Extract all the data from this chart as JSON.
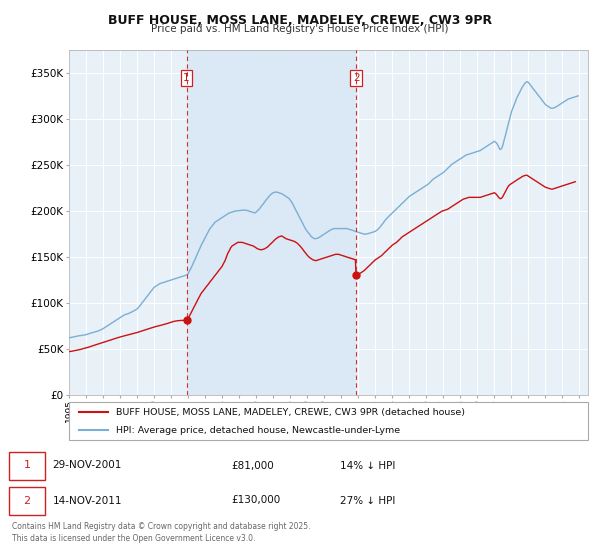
{
  "title": "BUFF HOUSE, MOSS LANE, MADELEY, CREWE, CW3 9PR",
  "subtitle": "Price paid vs. HM Land Registry's House Price Index (HPI)",
  "ytick_values": [
    0,
    50000,
    100000,
    150000,
    200000,
    250000,
    300000,
    350000
  ],
  "ylim": [
    0,
    375000
  ],
  "xlim_start": 1995.0,
  "xlim_end": 2025.5,
  "sale1_date": 2001.91,
  "sale1_label": "1",
  "sale1_price": 81000,
  "sale2_date": 2011.87,
  "sale2_label": "2",
  "sale2_price": 130000,
  "vline_color": "#cc3333",
  "hpi_color": "#7aafd4",
  "price_color": "#cc1111",
  "shade_color": "#dae8f5",
  "background_color": "#e8f0f8",
  "legend_entry1": "BUFF HOUSE, MOSS LANE, MADELEY, CREWE, CW3 9PR (detached house)",
  "legend_entry2": "HPI: Average price, detached house, Newcastle-under-Lyme",
  "table_row1": [
    "1",
    "29-NOV-2001",
    "£81,000",
    "14% ↓ HPI"
  ],
  "table_row2": [
    "2",
    "14-NOV-2011",
    "£130,000",
    "27% ↓ HPI"
  ],
  "footnote": "Contains HM Land Registry data © Crown copyright and database right 2025.\nThis data is licensed under the Open Government Licence v3.0.",
  "hpi_data_x": [
    1995.0,
    1995.08,
    1995.17,
    1995.25,
    1995.33,
    1995.42,
    1995.5,
    1995.58,
    1995.67,
    1995.75,
    1995.83,
    1995.92,
    1996.0,
    1996.08,
    1996.17,
    1996.25,
    1996.33,
    1996.42,
    1996.5,
    1996.58,
    1996.67,
    1996.75,
    1996.83,
    1996.92,
    1997.0,
    1997.08,
    1997.17,
    1997.25,
    1997.33,
    1997.42,
    1997.5,
    1997.58,
    1997.67,
    1997.75,
    1997.83,
    1997.92,
    1998.0,
    1998.08,
    1998.17,
    1998.25,
    1998.33,
    1998.42,
    1998.5,
    1998.58,
    1998.67,
    1998.75,
    1998.83,
    1998.92,
    1999.0,
    1999.08,
    1999.17,
    1999.25,
    1999.33,
    1999.42,
    1999.5,
    1999.58,
    1999.67,
    1999.75,
    1999.83,
    1999.92,
    2000.0,
    2000.08,
    2000.17,
    2000.25,
    2000.33,
    2000.42,
    2000.5,
    2000.58,
    2000.67,
    2000.75,
    2000.83,
    2000.92,
    2001.0,
    2001.08,
    2001.17,
    2001.25,
    2001.33,
    2001.42,
    2001.5,
    2001.58,
    2001.67,
    2001.75,
    2001.83,
    2001.92,
    2002.0,
    2002.08,
    2002.17,
    2002.25,
    2002.33,
    2002.42,
    2002.5,
    2002.58,
    2002.67,
    2002.75,
    2002.83,
    2002.92,
    2003.0,
    2003.08,
    2003.17,
    2003.25,
    2003.33,
    2003.42,
    2003.5,
    2003.58,
    2003.67,
    2003.75,
    2003.83,
    2003.92,
    2004.0,
    2004.08,
    2004.17,
    2004.25,
    2004.33,
    2004.42,
    2004.5,
    2004.58,
    2004.67,
    2004.75,
    2004.83,
    2004.92,
    2005.0,
    2005.08,
    2005.17,
    2005.25,
    2005.33,
    2005.42,
    2005.5,
    2005.58,
    2005.67,
    2005.75,
    2005.83,
    2005.92,
    2006.0,
    2006.08,
    2006.17,
    2006.25,
    2006.33,
    2006.42,
    2006.5,
    2006.58,
    2006.67,
    2006.75,
    2006.83,
    2006.92,
    2007.0,
    2007.08,
    2007.17,
    2007.25,
    2007.33,
    2007.42,
    2007.5,
    2007.58,
    2007.67,
    2007.75,
    2007.83,
    2007.92,
    2008.0,
    2008.08,
    2008.17,
    2008.25,
    2008.33,
    2008.42,
    2008.5,
    2008.58,
    2008.67,
    2008.75,
    2008.83,
    2008.92,
    2009.0,
    2009.08,
    2009.17,
    2009.25,
    2009.33,
    2009.42,
    2009.5,
    2009.58,
    2009.67,
    2009.75,
    2009.83,
    2009.92,
    2010.0,
    2010.08,
    2010.17,
    2010.25,
    2010.33,
    2010.42,
    2010.5,
    2010.58,
    2010.67,
    2010.75,
    2010.83,
    2010.92,
    2011.0,
    2011.08,
    2011.17,
    2011.25,
    2011.33,
    2011.42,
    2011.5,
    2011.58,
    2011.67,
    2011.75,
    2011.83,
    2011.92,
    2012.0,
    2012.08,
    2012.17,
    2012.25,
    2012.33,
    2012.42,
    2012.5,
    2012.58,
    2012.67,
    2012.75,
    2012.83,
    2012.92,
    2013.0,
    2013.08,
    2013.17,
    2013.25,
    2013.33,
    2013.42,
    2013.5,
    2013.58,
    2013.67,
    2013.75,
    2013.83,
    2013.92,
    2014.0,
    2014.08,
    2014.17,
    2014.25,
    2014.33,
    2014.42,
    2014.5,
    2014.58,
    2014.67,
    2014.75,
    2014.83,
    2014.92,
    2015.0,
    2015.08,
    2015.17,
    2015.25,
    2015.33,
    2015.42,
    2015.5,
    2015.58,
    2015.67,
    2015.75,
    2015.83,
    2015.92,
    2016.0,
    2016.08,
    2016.17,
    2016.25,
    2016.33,
    2016.42,
    2016.5,
    2016.58,
    2016.67,
    2016.75,
    2016.83,
    2016.92,
    2017.0,
    2017.08,
    2017.17,
    2017.25,
    2017.33,
    2017.42,
    2017.5,
    2017.58,
    2017.67,
    2017.75,
    2017.83,
    2017.92,
    2018.0,
    2018.08,
    2018.17,
    2018.25,
    2018.33,
    2018.42,
    2018.5,
    2018.58,
    2018.67,
    2018.75,
    2018.83,
    2018.92,
    2019.0,
    2019.08,
    2019.17,
    2019.25,
    2019.33,
    2019.42,
    2019.5,
    2019.58,
    2019.67,
    2019.75,
    2019.83,
    2019.92,
    2020.0,
    2020.08,
    2020.17,
    2020.25,
    2020.33,
    2020.42,
    2020.5,
    2020.58,
    2020.67,
    2020.75,
    2020.83,
    2020.92,
    2021.0,
    2021.08,
    2021.17,
    2021.25,
    2021.33,
    2021.42,
    2021.5,
    2021.58,
    2021.67,
    2021.75,
    2021.83,
    2021.92,
    2022.0,
    2022.08,
    2022.17,
    2022.25,
    2022.33,
    2022.42,
    2022.5,
    2022.58,
    2022.67,
    2022.75,
    2022.83,
    2022.92,
    2023.0,
    2023.08,
    2023.17,
    2023.25,
    2023.33,
    2023.42,
    2023.5,
    2023.58,
    2023.67,
    2023.75,
    2023.83,
    2023.92,
    2024.0,
    2024.08,
    2024.17,
    2024.25,
    2024.33,
    2024.42,
    2024.5,
    2024.58,
    2024.67,
    2024.75,
    2024.83,
    2024.92
  ],
  "hpi_data_y": [
    62000,
    62300,
    62600,
    63000,
    63300,
    63600,
    64000,
    64200,
    64400,
    64600,
    64900,
    65200,
    65500,
    66000,
    66500,
    67000,
    67400,
    67800,
    68200,
    68700,
    69200,
    69700,
    70400,
    71100,
    72000,
    73000,
    74000,
    75000,
    76000,
    77000,
    78000,
    79000,
    80000,
    81000,
    82000,
    83000,
    84000,
    85000,
    86000,
    87000,
    87500,
    88000,
    88500,
    89200,
    90000,
    90800,
    91600,
    92500,
    93500,
    95000,
    97000,
    99000,
    101000,
    103000,
    105000,
    107000,
    109000,
    111000,
    113000,
    115000,
    117000,
    118000,
    119000,
    120000,
    121000,
    121500,
    122000,
    122500,
    123000,
    123500,
    124000,
    124500,
    125000,
    125500,
    126000,
    126500,
    127000,
    127500,
    128000,
    128500,
    129000,
    129500,
    130000,
    130500,
    132000,
    135000,
    138000,
    141000,
    144500,
    148000,
    151500,
    155000,
    158500,
    162000,
    165000,
    168000,
    171000,
    174000,
    177000,
    180000,
    182000,
    184000,
    186000,
    188000,
    189000,
    190000,
    191000,
    192000,
    193000,
    194000,
    195000,
    196000,
    197000,
    198000,
    198500,
    199000,
    199500,
    200000,
    200200,
    200400,
    200600,
    200800,
    201000,
    201000,
    201000,
    201000,
    200500,
    200000,
    199500,
    199000,
    198500,
    198000,
    199000,
    200500,
    202000,
    204000,
    206000,
    208000,
    210000,
    212000,
    214000,
    216000,
    217500,
    219000,
    220000,
    220500,
    220800,
    220500,
    220000,
    219500,
    219000,
    218000,
    217000,
    216000,
    215000,
    214000,
    212000,
    210000,
    207000,
    204000,
    201000,
    198000,
    195000,
    192000,
    189000,
    186000,
    183000,
    180000,
    178000,
    176000,
    174000,
    172000,
    171000,
    170000,
    170000,
    170500,
    171000,
    172000,
    173000,
    174000,
    175000,
    176000,
    177000,
    178000,
    179000,
    180000,
    180500,
    181000,
    181000,
    181000,
    181000,
    181000,
    181000,
    181000,
    181000,
    181000,
    181000,
    180500,
    180000,
    179500,
    179000,
    178500,
    178000,
    177500,
    177000,
    176500,
    176000,
    175500,
    175000,
    175000,
    175200,
    175500,
    176000,
    176500,
    177000,
    177500,
    178000,
    179000,
    180500,
    182000,
    184000,
    186000,
    188000,
    190000,
    192000,
    193500,
    195000,
    196500,
    198000,
    199500,
    201000,
    202500,
    204000,
    205500,
    207000,
    208500,
    210000,
    211500,
    213000,
    214500,
    216000,
    217000,
    218000,
    219000,
    220000,
    221000,
    222000,
    223000,
    224000,
    225000,
    226000,
    227000,
    228000,
    229000,
    230500,
    232000,
    233500,
    235000,
    236000,
    237000,
    238000,
    239000,
    240000,
    241000,
    242000,
    243500,
    245000,
    246500,
    248000,
    249500,
    251000,
    252000,
    253000,
    254000,
    255000,
    256000,
    257000,
    258000,
    259000,
    260000,
    261000,
    261500,
    262000,
    262500,
    263000,
    263500,
    264000,
    264500,
    265000,
    265500,
    266000,
    267000,
    268000,
    269000,
    270000,
    271000,
    272000,
    273000,
    274000,
    275000,
    276000,
    275000,
    273000,
    270000,
    267000,
    268000,
    272000,
    278000,
    284000,
    290000,
    296000,
    302000,
    308000,
    312000,
    316000,
    320000,
    324000,
    327000,
    330000,
    333000,
    336000,
    338000,
    340000,
    341000,
    340000,
    338000,
    336000,
    334000,
    332000,
    330000,
    328000,
    326000,
    324000,
    322000,
    320000,
    318000,
    316000,
    315000,
    314000,
    313000,
    312000,
    312000,
    312500,
    313000,
    314000,
    315000,
    316000,
    317000,
    318000,
    319000,
    320000,
    321000,
    322000,
    322500,
    323000,
    323500,
    324000,
    324500,
    325000,
    325500
  ],
  "price_data_x": [
    1995.0,
    1995.08,
    1995.17,
    1995.25,
    1995.33,
    1995.42,
    1995.5,
    1995.58,
    1995.67,
    1995.75,
    1995.83,
    1995.92,
    1996.0,
    1996.08,
    1996.17,
    1996.25,
    1996.33,
    1996.42,
    1996.5,
    1996.58,
    1996.67,
    1996.75,
    1996.83,
    1996.92,
    1997.0,
    1997.08,
    1997.17,
    1997.25,
    1997.33,
    1997.42,
    1997.5,
    1997.58,
    1997.67,
    1997.75,
    1997.83,
    1997.92,
    1998.0,
    1998.08,
    1998.17,
    1998.25,
    1998.33,
    1998.42,
    1998.5,
    1998.58,
    1998.67,
    1998.75,
    1998.83,
    1998.92,
    1999.0,
    1999.08,
    1999.17,
    1999.25,
    1999.33,
    1999.42,
    1999.5,
    1999.58,
    1999.67,
    1999.75,
    1999.83,
    1999.92,
    2000.0,
    2000.08,
    2000.17,
    2000.25,
    2000.33,
    2000.42,
    2000.5,
    2000.58,
    2000.67,
    2000.75,
    2000.83,
    2000.92,
    2001.0,
    2001.08,
    2001.17,
    2001.25,
    2001.33,
    2001.42,
    2001.5,
    2001.58,
    2001.67,
    2001.75,
    2001.83,
    2001.91,
    2002.0,
    2002.08,
    2002.17,
    2002.25,
    2002.33,
    2002.42,
    2002.5,
    2002.58,
    2002.67,
    2002.75,
    2002.83,
    2002.92,
    2003.0,
    2003.08,
    2003.17,
    2003.25,
    2003.33,
    2003.42,
    2003.5,
    2003.58,
    2003.67,
    2003.75,
    2003.83,
    2003.92,
    2004.0,
    2004.08,
    2004.17,
    2004.25,
    2004.33,
    2004.42,
    2004.5,
    2004.58,
    2004.67,
    2004.75,
    2004.83,
    2004.92,
    2005.0,
    2005.08,
    2005.17,
    2005.25,
    2005.33,
    2005.42,
    2005.5,
    2005.58,
    2005.67,
    2005.75,
    2005.83,
    2005.92,
    2006.0,
    2006.08,
    2006.17,
    2006.25,
    2006.33,
    2006.42,
    2006.5,
    2006.58,
    2006.67,
    2006.75,
    2006.83,
    2006.92,
    2007.0,
    2007.08,
    2007.17,
    2007.25,
    2007.33,
    2007.42,
    2007.5,
    2007.58,
    2007.67,
    2007.75,
    2007.83,
    2007.92,
    2008.0,
    2008.08,
    2008.17,
    2008.25,
    2008.33,
    2008.42,
    2008.5,
    2008.58,
    2008.67,
    2008.75,
    2008.83,
    2008.92,
    2009.0,
    2009.08,
    2009.17,
    2009.25,
    2009.33,
    2009.42,
    2009.5,
    2009.58,
    2009.67,
    2009.75,
    2009.83,
    2009.92,
    2010.0,
    2010.08,
    2010.17,
    2010.25,
    2010.33,
    2010.42,
    2010.5,
    2010.58,
    2010.67,
    2010.75,
    2010.83,
    2010.92,
    2011.0,
    2011.08,
    2011.17,
    2011.25,
    2011.33,
    2011.42,
    2011.5,
    2011.58,
    2011.67,
    2011.75,
    2011.83,
    2011.87,
    2012.0,
    2012.08,
    2012.17,
    2012.25,
    2012.33,
    2012.42,
    2012.5,
    2012.58,
    2012.67,
    2012.75,
    2012.83,
    2012.92,
    2013.0,
    2013.08,
    2013.17,
    2013.25,
    2013.33,
    2013.42,
    2013.5,
    2013.58,
    2013.67,
    2013.75,
    2013.83,
    2013.92,
    2014.0,
    2014.08,
    2014.17,
    2014.25,
    2014.33,
    2014.42,
    2014.5,
    2014.58,
    2014.67,
    2014.75,
    2014.83,
    2014.92,
    2015.0,
    2015.08,
    2015.17,
    2015.25,
    2015.33,
    2015.42,
    2015.5,
    2015.58,
    2015.67,
    2015.75,
    2015.83,
    2015.92,
    2016.0,
    2016.08,
    2016.17,
    2016.25,
    2016.33,
    2016.42,
    2016.5,
    2016.58,
    2016.67,
    2016.75,
    2016.83,
    2016.92,
    2017.0,
    2017.08,
    2017.17,
    2017.25,
    2017.33,
    2017.42,
    2017.5,
    2017.58,
    2017.67,
    2017.75,
    2017.83,
    2017.92,
    2018.0,
    2018.08,
    2018.17,
    2018.25,
    2018.33,
    2018.42,
    2018.5,
    2018.58,
    2018.67,
    2018.75,
    2018.83,
    2018.92,
    2019.0,
    2019.08,
    2019.17,
    2019.25,
    2019.33,
    2019.42,
    2019.5,
    2019.58,
    2019.67,
    2019.75,
    2019.83,
    2019.92,
    2020.0,
    2020.08,
    2020.17,
    2020.25,
    2020.33,
    2020.42,
    2020.5,
    2020.58,
    2020.67,
    2020.75,
    2020.83,
    2020.92,
    2021.0,
    2021.08,
    2021.17,
    2021.25,
    2021.33,
    2021.42,
    2021.5,
    2021.58,
    2021.67,
    2021.75,
    2021.83,
    2021.92,
    2022.0,
    2022.08,
    2022.17,
    2022.25,
    2022.33,
    2022.42,
    2022.5,
    2022.58,
    2022.67,
    2022.75,
    2022.83,
    2022.92,
    2023.0,
    2023.08,
    2023.17,
    2023.25,
    2023.33,
    2023.42,
    2023.5,
    2023.58,
    2023.67,
    2023.75,
    2023.83,
    2023.92,
    2024.0,
    2024.08,
    2024.17,
    2024.25,
    2024.33,
    2024.42,
    2024.5,
    2024.58,
    2024.67,
    2024.75
  ],
  "price_data_y": [
    47000,
    47200,
    47500,
    47800,
    48100,
    48400,
    48700,
    49000,
    49400,
    49800,
    50200,
    50600,
    51000,
    51500,
    52000,
    52500,
    53000,
    53500,
    54000,
    54500,
    55000,
    55500,
    56000,
    56500,
    57000,
    57500,
    58000,
    58500,
    59000,
    59500,
    60000,
    60500,
    61000,
    61500,
    62000,
    62500,
    63000,
    63400,
    63800,
    64200,
    64600,
    65000,
    65400,
    65800,
    66200,
    66600,
    67000,
    67400,
    67800,
    68300,
    68800,
    69300,
    69800,
    70300,
    70800,
    71300,
    71800,
    72300,
    72800,
    73300,
    73800,
    74200,
    74600,
    75000,
    75400,
    75800,
    76200,
    76600,
    77000,
    77500,
    78000,
    78500,
    79000,
    79500,
    80000,
    80300,
    80500,
    80700,
    80900,
    81000,
    81000,
    81000,
    81000,
    81000,
    83000,
    86000,
    89000,
    92000,
    95000,
    98000,
    101000,
    104000,
    107000,
    110000,
    112000,
    114000,
    116000,
    118000,
    120000,
    122000,
    124000,
    126000,
    128000,
    130000,
    132000,
    134000,
    136000,
    138000,
    140000,
    143000,
    146000,
    150000,
    154000,
    157000,
    160000,
    162000,
    163000,
    164000,
    165000,
    166000,
    166000,
    166000,
    166000,
    165500,
    165000,
    164500,
    164000,
    163500,
    163000,
    162500,
    162000,
    161000,
    160000,
    159000,
    158500,
    158000,
    158000,
    158500,
    159000,
    160000,
    161000,
    162500,
    164000,
    165500,
    167000,
    168500,
    170000,
    171000,
    172000,
    172500,
    173000,
    172000,
    171000,
    170000,
    169500,
    169000,
    168500,
    168000,
    167500,
    167000,
    166000,
    165000,
    163500,
    162000,
    160000,
    158000,
    156000,
    154000,
    152000,
    150500,
    149000,
    148000,
    147000,
    146500,
    146000,
    146500,
    147000,
    147500,
    148000,
    148500,
    149000,
    149500,
    150000,
    150500,
    151000,
    151500,
    152000,
    152500,
    153000,
    153000,
    153000,
    152500,
    152000,
    151500,
    151000,
    150500,
    150000,
    149500,
    149000,
    148500,
    148000,
    147500,
    147000,
    130000,
    131000,
    132000,
    133000,
    134000,
    135000,
    136500,
    138000,
    139500,
    141000,
    142500,
    144000,
    145500,
    147000,
    148000,
    149000,
    150000,
    151000,
    152500,
    154000,
    155500,
    157000,
    158500,
    160000,
    161500,
    163000,
    164000,
    165000,
    166000,
    167500,
    169000,
    170500,
    172000,
    173000,
    174000,
    175000,
    176000,
    177000,
    178000,
    179000,
    180000,
    181000,
    182000,
    183000,
    184000,
    185000,
    186000,
    187000,
    188000,
    189000,
    190000,
    191000,
    192000,
    193000,
    194000,
    195000,
    196000,
    197000,
    198000,
    199000,
    200000,
    200500,
    201000,
    201500,
    202000,
    203000,
    204000,
    205000,
    206000,
    207000,
    208000,
    209000,
    210000,
    211000,
    212000,
    213000,
    213500,
    214000,
    214500,
    215000,
    215000,
    215000,
    215000,
    215000,
    215000,
    215000,
    215000,
    215000,
    215500,
    216000,
    216500,
    217000,
    217500,
    218000,
    218500,
    219000,
    219500,
    220000,
    219000,
    217000,
    215000,
    213500,
    214000,
    216000,
    219000,
    222000,
    225000,
    227500,
    229000,
    230000,
    231000,
    232000,
    233000,
    234000,
    235000,
    236000,
    237000,
    238000,
    238500,
    239000,
    239000,
    238000,
    237000,
    236000,
    235000,
    234000,
    233000,
    232000,
    231000,
    230000,
    229000,
    228000,
    227000,
    226000,
    225500,
    225000,
    224500,
    224000,
    224000,
    224500,
    225000,
    225500,
    226000,
    226500,
    227000,
    227500,
    228000,
    228500,
    229000,
    229500,
    230000,
    230500,
    231000,
    231500,
    232000
  ]
}
